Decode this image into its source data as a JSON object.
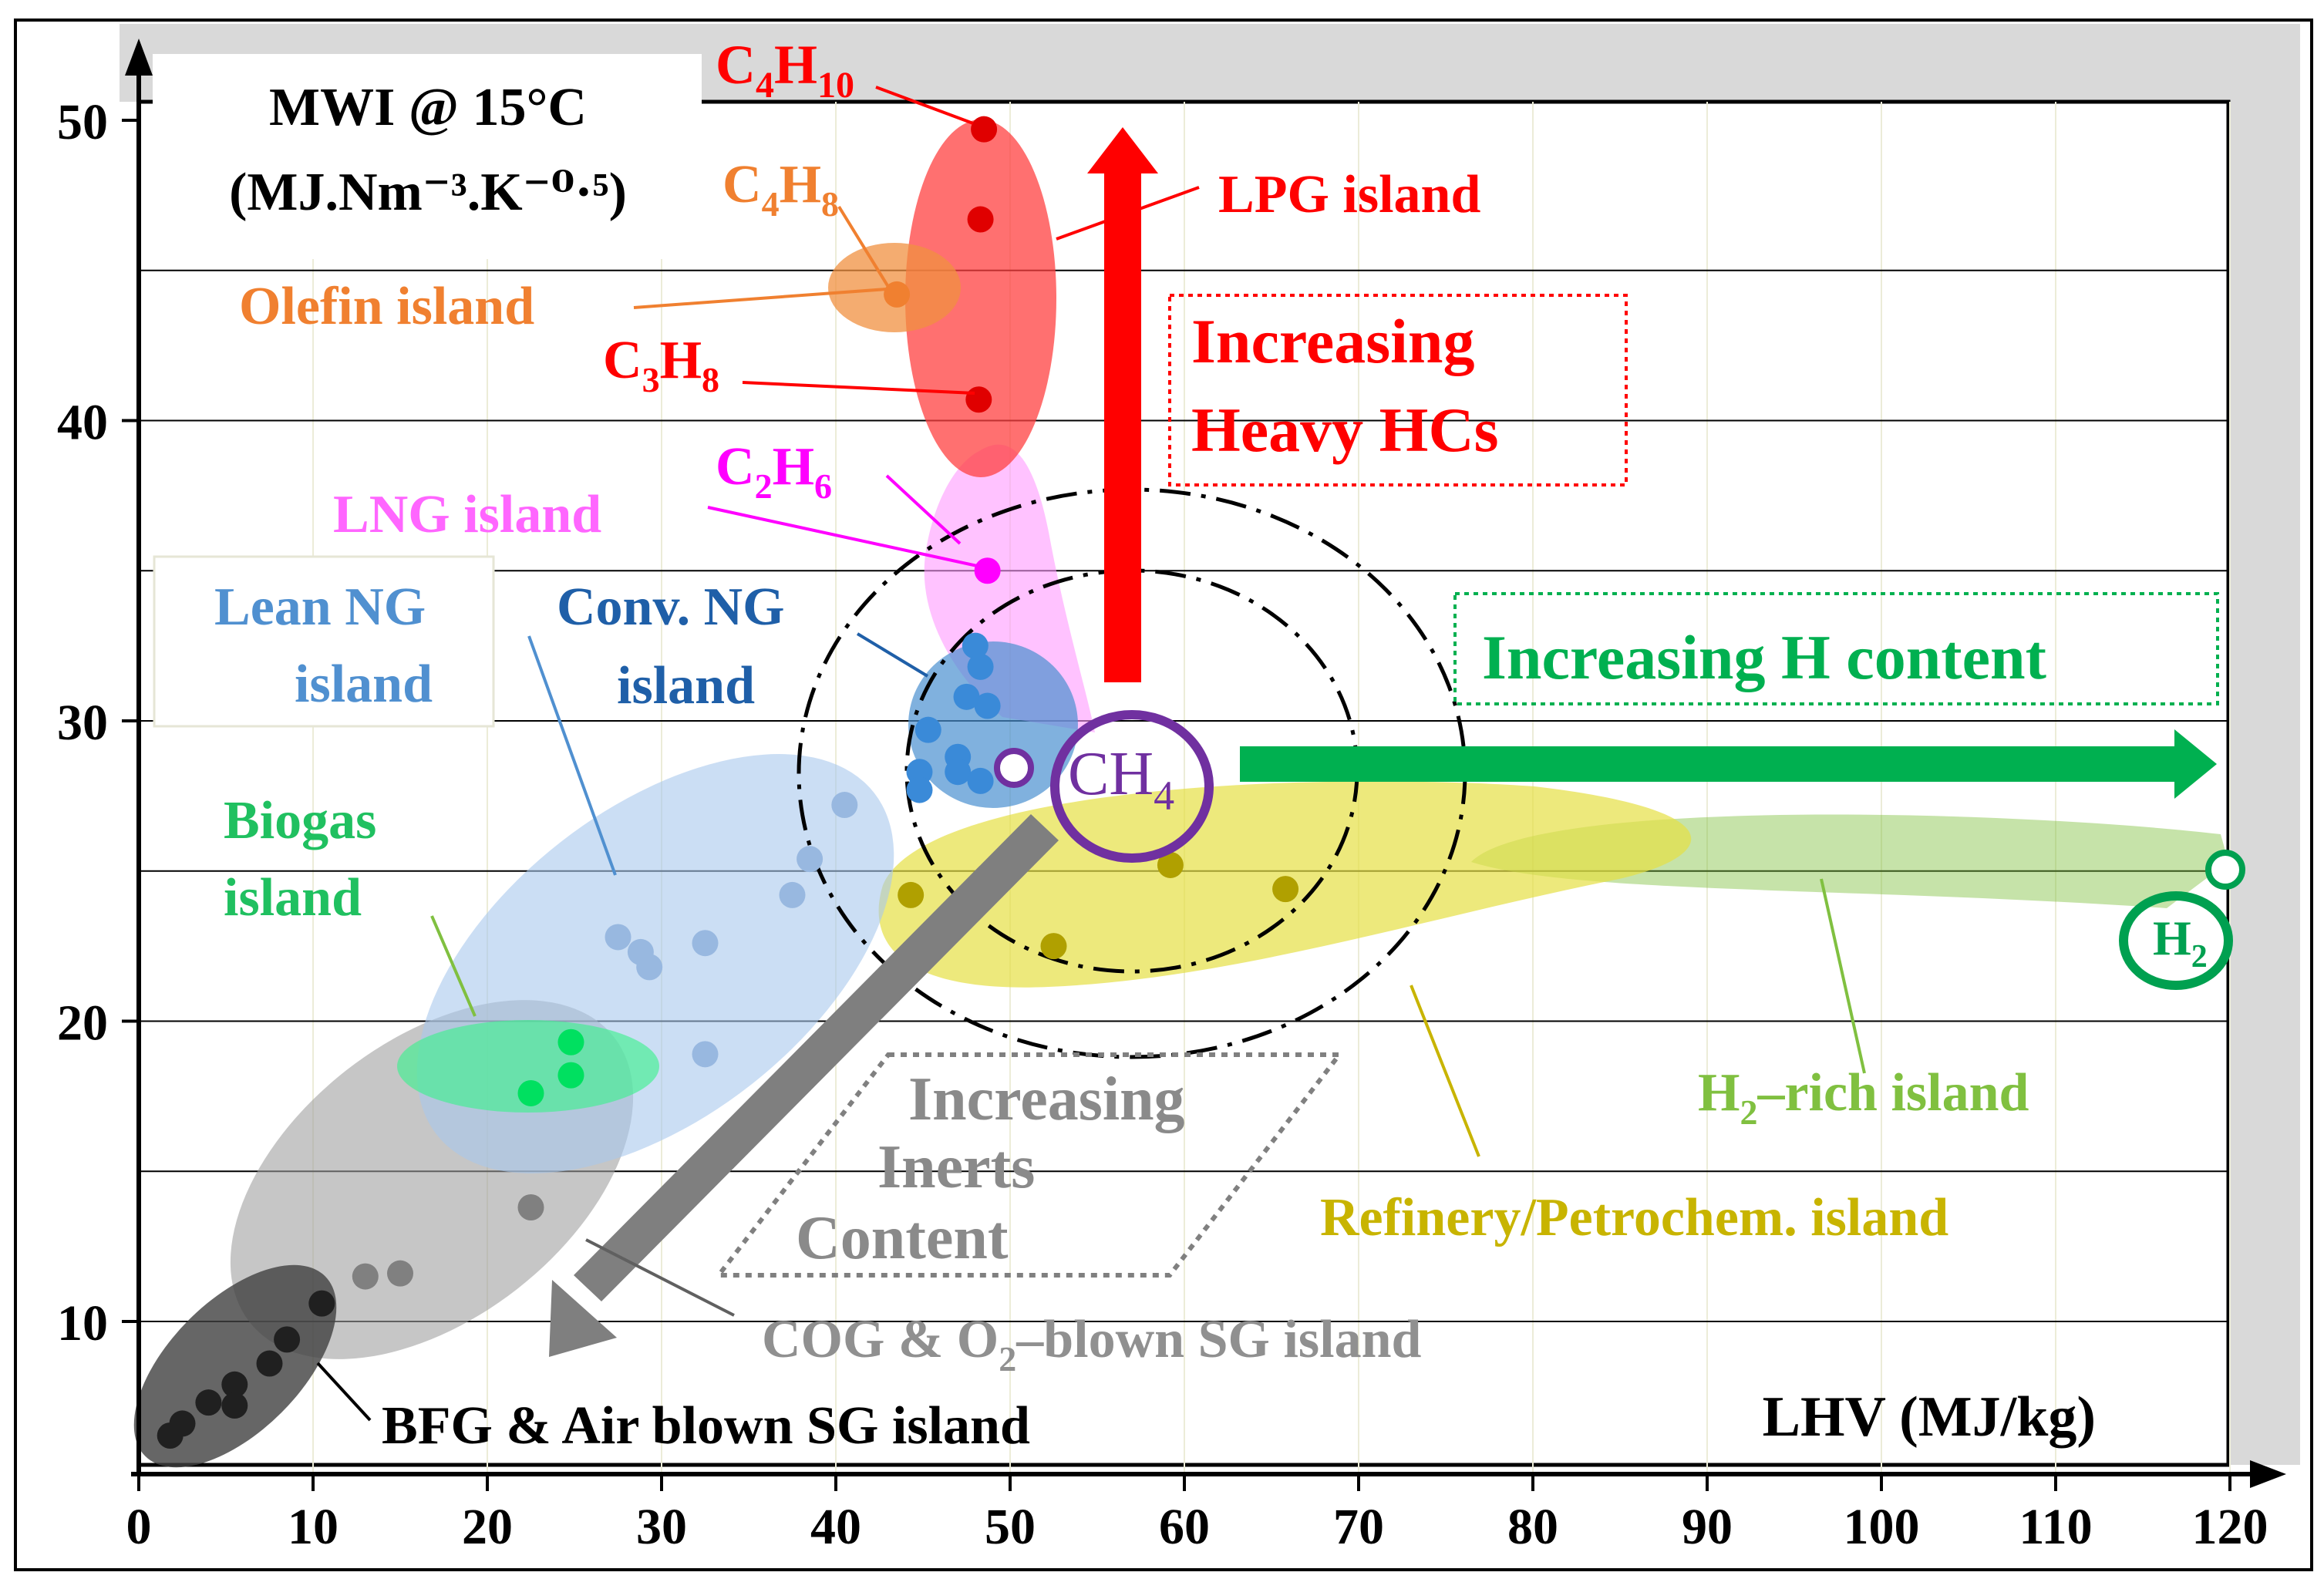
{
  "chart_data": {
    "type": "scatter",
    "title": "",
    "ylabel_line1": "MWI @ 15°C",
    "ylabel_line2": "(MJ.Nm⁻³.K⁻⁰·⁵)",
    "xlabel": "LHV (MJ/kg)",
    "xlim": [
      0,
      120
    ],
    "ylim": [
      5,
      50
    ],
    "xticks": [
      "0",
      "10",
      "20",
      "30",
      "40",
      "50",
      "60",
      "70",
      "80",
      "90",
      "100",
      "110",
      "120"
    ],
    "yticks": [
      "10",
      "20",
      "30",
      "40",
      "50"
    ],
    "grid": "horizontal",
    "colors": {
      "lpg": "#ff2020",
      "olefin": "#f08030",
      "lng": "#ff66ff",
      "lean": "#5090d0",
      "conv": "#1f5fa8",
      "biogas": "#20c060",
      "refinery": "#c8b400",
      "h2rich": "#80c040",
      "h2": "#00a050",
      "ch4": "#7030a0",
      "cog": "#909090",
      "bfg": "#202020"
    },
    "islands": [
      {
        "id": "lpg",
        "label": "LPG island"
      },
      {
        "id": "olefin",
        "label": "Olefin island"
      },
      {
        "id": "lng",
        "label": "LNG island"
      },
      {
        "id": "lean",
        "label_line1": "Lean NG",
        "label_line2": "island"
      },
      {
        "id": "conv",
        "label_line1": "Conv. NG",
        "label_line2": "island"
      },
      {
        "id": "biogas",
        "label_line1": "Biogas",
        "label_line2": "island"
      },
      {
        "id": "refinery",
        "label": "Refinery/Petrochem. island"
      },
      {
        "id": "h2rich",
        "label_main": "H",
        "label_sub": "2",
        "label_rest": "–rich island"
      },
      {
        "id": "cog",
        "label_pre": "COG & O",
        "label_sub": "2",
        "label_rest": "–blown SG island"
      },
      {
        "id": "bfg",
        "label": "BFG & Air blown SG island"
      }
    ],
    "compounds": [
      {
        "name": "C4H10",
        "main": "C",
        "sub1": "4",
        "mid": "H",
        "sub2": "10",
        "x": 48.5,
        "y": 49.7
      },
      {
        "name": "C4H8",
        "main": "C",
        "sub1": "4",
        "mid": "H",
        "sub2": "8",
        "x": 43.5,
        "y": 44.2
      },
      {
        "name": "C3H8",
        "main": "C",
        "sub1": "3",
        "mid": "H",
        "sub2": "8",
        "x": 48.2,
        "y": 40.7
      },
      {
        "name": "C2H6",
        "main": "C",
        "sub1": "2",
        "mid": "H",
        "sub2": "6",
        "x": 48.7,
        "y": 35.0
      },
      {
        "name": "CH4",
        "main": "CH",
        "sub1": "4",
        "mid": "",
        "sub2": "",
        "x": 50.0,
        "y": 28.5
      },
      {
        "name": "H2",
        "main": "H",
        "sub1": "2",
        "mid": "",
        "sub2": "",
        "x": 120.0,
        "y": 25.2
      }
    ],
    "series": [
      {
        "island": "lpg",
        "points": [
          [
            48.5,
            49.7
          ],
          [
            48.3,
            46.7
          ],
          [
            48.2,
            40.7
          ]
        ]
      },
      {
        "island": "olefin",
        "points": [
          [
            43.5,
            44.2
          ]
        ]
      },
      {
        "island": "lng",
        "points": [
          [
            48.7,
            35.0
          ]
        ]
      },
      {
        "island": "conv",
        "points": [
          [
            48.0,
            32.5
          ],
          [
            48.3,
            31.8
          ],
          [
            47.5,
            30.8
          ],
          [
            48.7,
            30.5
          ],
          [
            45.3,
            29.7
          ],
          [
            47.0,
            28.8
          ],
          [
            47.0,
            28.3
          ],
          [
            44.8,
            28.3
          ],
          [
            48.3,
            28.0
          ],
          [
            44.8,
            27.7
          ]
        ]
      },
      {
        "island": "lean",
        "points": [
          [
            40.5,
            27.2
          ],
          [
            38.5,
            25.4
          ],
          [
            37.5,
            24.2
          ],
          [
            32.5,
            22.6
          ],
          [
            27.5,
            22.8
          ],
          [
            28.8,
            22.3
          ],
          [
            29.3,
            21.8
          ],
          [
            32.5,
            18.9
          ]
        ]
      },
      {
        "island": "biogas",
        "points": [
          [
            24.8,
            19.3
          ],
          [
            24.8,
            18.2
          ],
          [
            22.5,
            17.6
          ]
        ]
      },
      {
        "island": "cog",
        "points": [
          [
            22.5,
            13.8
          ],
          [
            15.0,
            11.6
          ],
          [
            13.0,
            11.5
          ]
        ]
      },
      {
        "island": "bfg",
        "points": [
          [
            10.5,
            10.6
          ],
          [
            8.5,
            9.4
          ],
          [
            7.5,
            8.6
          ],
          [
            5.5,
            7.9
          ],
          [
            4.0,
            7.3
          ],
          [
            2.5,
            6.6
          ],
          [
            5.5,
            7.2
          ],
          [
            1.8,
            6.2
          ]
        ]
      },
      {
        "island": "refinery",
        "points": [
          [
            44.3,
            24.2
          ],
          [
            59.2,
            25.2
          ],
          [
            65.8,
            24.4
          ],
          [
            52.5,
            22.5
          ]
        ]
      }
    ],
    "annotations": [
      {
        "id": "heavy",
        "line1": "Increasing",
        "line2": "Heavy HCs"
      },
      {
        "id": "hcontent",
        "text": "Increasing H content"
      },
      {
        "id": "inerts",
        "line1": "Increasing",
        "line2": "Inerts",
        "line3": "Content"
      }
    ]
  }
}
